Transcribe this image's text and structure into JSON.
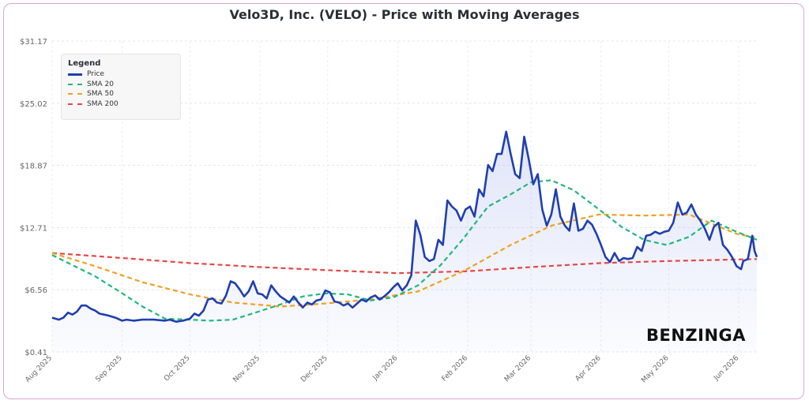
{
  "chart_data": {
    "type": "line",
    "title": "Velo3D, Inc. (VELO) - Price with Moving Averages",
    "xlabel": "",
    "ylabel": "",
    "y_ticks": [
      "$0.41",
      "$6.56",
      "$12.71",
      "$18.87",
      "$25.02",
      "$31.17"
    ],
    "y_tick_values": [
      0.41,
      6.56,
      12.71,
      18.87,
      25.02,
      31.17
    ],
    "ylim": [
      0.41,
      31.17
    ],
    "x_ticks": [
      "Aug 2025",
      "Sep 2025",
      "Oct 2025",
      "Nov 2025",
      "Dec 2025",
      "Jan 2026",
      "Feb 2026",
      "Mar 2026",
      "Apr 2026",
      "May 2026",
      "Jun 2026"
    ],
    "x_tick_dates": [
      "2025-08-01",
      "2025-09-01",
      "2025-10-01",
      "2025-11-01",
      "2025-12-01",
      "2026-01-01",
      "2026-02-01",
      "2026-03-01",
      "2026-04-01",
      "2026-05-01",
      "2026-06-01"
    ],
    "xlim": [
      "2025-08-01",
      "2026-06-09"
    ],
    "grid": true,
    "legend": {
      "title": "Legend",
      "placement": "top-left",
      "entries": [
        {
          "name": "Price",
          "color": "#1f3fb0",
          "dashed": false
        },
        {
          "name": "SMA 20",
          "color": "#1fb87c",
          "dashed": true
        },
        {
          "name": "SMA 50",
          "color": "#f0a020",
          "dashed": true
        },
        {
          "name": "SMA 200",
          "color": "#e84646",
          "dashed": true
        }
      ]
    },
    "series": [
      {
        "name": "Price",
        "color": "#1f3fb0",
        "points": [
          [
            "2025-08-01",
            3.8
          ],
          [
            "2025-08-04",
            3.6
          ],
          [
            "2025-08-06",
            3.8
          ],
          [
            "2025-08-08",
            4.3
          ],
          [
            "2025-08-10",
            4.1
          ],
          [
            "2025-08-12",
            4.4
          ],
          [
            "2025-08-14",
            5.0
          ],
          [
            "2025-08-16",
            5.0
          ],
          [
            "2025-08-18",
            4.7
          ],
          [
            "2025-08-20",
            4.5
          ],
          [
            "2025-08-22",
            4.2
          ],
          [
            "2025-08-24",
            4.1
          ],
          [
            "2025-08-26",
            4.0
          ],
          [
            "2025-08-29",
            3.8
          ],
          [
            "2025-09-01",
            3.5
          ],
          [
            "2025-09-03",
            3.6
          ],
          [
            "2025-09-06",
            3.5
          ],
          [
            "2025-09-10",
            3.6
          ],
          [
            "2025-09-15",
            3.6
          ],
          [
            "2025-09-20",
            3.5
          ],
          [
            "2025-09-22",
            3.6
          ],
          [
            "2025-09-25",
            3.4
          ],
          [
            "2025-09-28",
            3.5
          ],
          [
            "2025-10-01",
            3.7
          ],
          [
            "2025-10-03",
            4.2
          ],
          [
            "2025-10-05",
            4.0
          ],
          [
            "2025-10-07",
            4.5
          ],
          [
            "2025-10-09",
            5.6
          ],
          [
            "2025-10-11",
            5.7
          ],
          [
            "2025-10-13",
            5.3
          ],
          [
            "2025-10-15",
            5.2
          ],
          [
            "2025-10-17",
            6.0
          ],
          [
            "2025-10-19",
            7.4
          ],
          [
            "2025-10-21",
            7.2
          ],
          [
            "2025-10-23",
            6.6
          ],
          [
            "2025-10-25",
            5.9
          ],
          [
            "2025-10-27",
            6.4
          ],
          [
            "2025-10-29",
            7.4
          ],
          [
            "2025-10-31",
            6.2
          ],
          [
            "2025-11-02",
            6.1
          ],
          [
            "2025-11-04",
            5.7
          ],
          [
            "2025-11-06",
            7.0
          ],
          [
            "2025-11-08",
            6.4
          ],
          [
            "2025-11-10",
            5.9
          ],
          [
            "2025-11-12",
            5.6
          ],
          [
            "2025-11-14",
            5.3
          ],
          [
            "2025-11-16",
            5.9
          ],
          [
            "2025-11-18",
            5.3
          ],
          [
            "2025-11-20",
            4.8
          ],
          [
            "2025-11-22",
            5.3
          ],
          [
            "2025-11-24",
            5.1
          ],
          [
            "2025-11-26",
            5.5
          ],
          [
            "2025-11-28",
            5.6
          ],
          [
            "2025-11-30",
            6.5
          ],
          [
            "2025-12-02",
            6.3
          ],
          [
            "2025-12-04",
            5.4
          ],
          [
            "2025-12-06",
            5.3
          ],
          [
            "2025-12-08",
            5.0
          ],
          [
            "2025-12-10",
            5.2
          ],
          [
            "2025-12-12",
            4.8
          ],
          [
            "2025-12-14",
            5.2
          ],
          [
            "2025-12-16",
            5.6
          ],
          [
            "2025-12-18",
            5.4
          ],
          [
            "2025-12-20",
            5.8
          ],
          [
            "2025-12-22",
            6.0
          ],
          [
            "2025-12-24",
            5.6
          ],
          [
            "2025-12-26",
            5.9
          ],
          [
            "2025-12-28",
            6.3
          ],
          [
            "2025-12-30",
            6.8
          ],
          [
            "2026-01-01",
            7.2
          ],
          [
            "2026-01-03",
            6.5
          ],
          [
            "2026-01-05",
            7.0
          ],
          [
            "2026-01-07",
            8.0
          ],
          [
            "2026-01-09",
            13.4
          ],
          [
            "2026-01-11",
            12.0
          ],
          [
            "2026-01-13",
            9.8
          ],
          [
            "2026-01-15",
            9.4
          ],
          [
            "2026-01-17",
            9.6
          ],
          [
            "2026-01-19",
            11.5
          ],
          [
            "2026-01-21",
            11.0
          ],
          [
            "2026-01-23",
            15.4
          ],
          [
            "2026-01-25",
            14.8
          ],
          [
            "2026-01-27",
            14.4
          ],
          [
            "2026-01-29",
            13.4
          ],
          [
            "2026-01-31",
            14.5
          ],
          [
            "2026-02-02",
            14.8
          ],
          [
            "2026-02-04",
            13.8
          ],
          [
            "2026-02-06",
            16.5
          ],
          [
            "2026-02-08",
            15.8
          ],
          [
            "2026-02-10",
            18.9
          ],
          [
            "2026-02-12",
            18.3
          ],
          [
            "2026-02-14",
            20.0
          ],
          [
            "2026-02-16",
            20.0
          ],
          [
            "2026-02-18",
            22.2
          ],
          [
            "2026-02-20",
            20.0
          ],
          [
            "2026-02-22",
            18.0
          ],
          [
            "2026-02-24",
            17.6
          ],
          [
            "2026-02-26",
            21.7
          ],
          [
            "2026-02-28",
            19.5
          ],
          [
            "2026-03-02",
            17.0
          ],
          [
            "2026-03-04",
            18.0
          ],
          [
            "2026-03-06",
            14.5
          ],
          [
            "2026-03-08",
            12.9
          ],
          [
            "2026-03-10",
            14.0
          ],
          [
            "2026-03-12",
            16.5
          ],
          [
            "2026-03-14",
            13.8
          ],
          [
            "2026-03-16",
            12.9
          ],
          [
            "2026-03-18",
            12.4
          ],
          [
            "2026-03-20",
            15.1
          ],
          [
            "2026-03-22",
            12.4
          ],
          [
            "2026-03-24",
            12.6
          ],
          [
            "2026-03-26",
            13.4
          ],
          [
            "2026-03-28",
            13.0
          ],
          [
            "2026-03-30",
            12.1
          ],
          [
            "2026-04-01",
            11.0
          ],
          [
            "2026-04-03",
            9.8
          ],
          [
            "2026-04-05",
            9.3
          ],
          [
            "2026-04-07",
            10.2
          ],
          [
            "2026-04-09",
            9.4
          ],
          [
            "2026-04-11",
            9.7
          ],
          [
            "2026-04-13",
            9.6
          ],
          [
            "2026-04-15",
            9.7
          ],
          [
            "2026-04-17",
            10.8
          ],
          [
            "2026-04-19",
            10.4
          ],
          [
            "2026-04-21",
            11.9
          ],
          [
            "2026-04-23",
            12.0
          ],
          [
            "2026-04-25",
            12.3
          ],
          [
            "2026-04-27",
            12.1
          ],
          [
            "2026-04-29",
            12.3
          ],
          [
            "2026-05-01",
            12.4
          ],
          [
            "2026-05-03",
            13.2
          ],
          [
            "2026-05-05",
            15.2
          ],
          [
            "2026-05-07",
            14.0
          ],
          [
            "2026-05-09",
            14.2
          ],
          [
            "2026-05-11",
            15.0
          ],
          [
            "2026-05-13",
            14.0
          ],
          [
            "2026-05-15",
            13.4
          ],
          [
            "2026-05-17",
            12.6
          ],
          [
            "2026-05-19",
            11.5
          ],
          [
            "2026-05-21",
            12.8
          ],
          [
            "2026-05-23",
            13.2
          ],
          [
            "2026-05-25",
            11.0
          ],
          [
            "2026-05-27",
            10.5
          ],
          [
            "2026-05-29",
            9.8
          ],
          [
            "2026-05-31",
            8.9
          ],
          [
            "2026-06-02",
            8.6
          ],
          [
            "2026-06-03",
            9.4
          ],
          [
            "2026-06-05",
            9.6
          ],
          [
            "2026-06-07",
            11.9
          ],
          [
            "2026-06-08",
            10.4
          ],
          [
            "2026-06-09",
            9.8
          ]
        ]
      },
      {
        "name": "SMA 20",
        "color": "#1fb87c",
        "points": [
          [
            "2025-08-01",
            10.0
          ],
          [
            "2025-08-10",
            9.0
          ],
          [
            "2025-08-20",
            7.9
          ],
          [
            "2025-08-30",
            6.5
          ],
          [
            "2025-09-10",
            4.9
          ],
          [
            "2025-09-20",
            3.7
          ],
          [
            "2025-10-01",
            3.6
          ],
          [
            "2025-10-10",
            3.5
          ],
          [
            "2025-10-20",
            3.6
          ],
          [
            "2025-10-30",
            4.3
          ],
          [
            "2025-11-10",
            5.1
          ],
          [
            "2025-11-20",
            5.9
          ],
          [
            "2025-11-30",
            6.2
          ],
          [
            "2025-12-10",
            6.1
          ],
          [
            "2025-12-20",
            5.5
          ],
          [
            "2025-12-30",
            5.8
          ],
          [
            "2026-01-10",
            7.0
          ],
          [
            "2026-01-20",
            9.0
          ],
          [
            "2026-01-30",
            11.6
          ],
          [
            "2026-02-10",
            14.8
          ],
          [
            "2026-02-20",
            16.0
          ],
          [
            "2026-03-01",
            17.2
          ],
          [
            "2026-03-10",
            17.4
          ],
          [
            "2026-03-20",
            16.4
          ],
          [
            "2026-03-30",
            14.7
          ],
          [
            "2026-04-10",
            12.8
          ],
          [
            "2026-04-20",
            11.5
          ],
          [
            "2026-04-30",
            11.0
          ],
          [
            "2026-05-10",
            11.8
          ],
          [
            "2026-05-20",
            13.4
          ],
          [
            "2026-05-31",
            12.3
          ],
          [
            "2026-06-09",
            11.5
          ]
        ]
      },
      {
        "name": "SMA 50",
        "color": "#f0a020",
        "points": [
          [
            "2025-08-01",
            10.2
          ],
          [
            "2025-08-20",
            8.9
          ],
          [
            "2025-09-10",
            7.3
          ],
          [
            "2025-10-01",
            6.1
          ],
          [
            "2025-10-20",
            5.3
          ],
          [
            "2025-11-10",
            4.9
          ],
          [
            "2025-11-30",
            5.2
          ],
          [
            "2025-12-20",
            5.6
          ],
          [
            "2026-01-10",
            6.4
          ],
          [
            "2026-01-30",
            8.4
          ],
          [
            "2026-02-20",
            11.0
          ],
          [
            "2026-03-10",
            12.9
          ],
          [
            "2026-03-31",
            14.0
          ],
          [
            "2026-04-20",
            13.9
          ],
          [
            "2026-05-10",
            14.0
          ],
          [
            "2026-05-31",
            12.1
          ],
          [
            "2026-06-09",
            11.7
          ]
        ]
      },
      {
        "name": "SMA 200",
        "color": "#e84646",
        "points": [
          [
            "2025-08-01",
            10.2
          ],
          [
            "2025-09-01",
            9.7
          ],
          [
            "2025-10-01",
            9.2
          ],
          [
            "2025-11-01",
            8.8
          ],
          [
            "2025-12-01",
            8.5
          ],
          [
            "2026-01-01",
            8.2
          ],
          [
            "2026-02-01",
            8.4
          ],
          [
            "2026-03-01",
            8.8
          ],
          [
            "2026-04-01",
            9.2
          ],
          [
            "2026-05-01",
            9.4
          ],
          [
            "2026-06-09",
            9.6
          ]
        ]
      }
    ]
  },
  "brand": "BENZINGA"
}
